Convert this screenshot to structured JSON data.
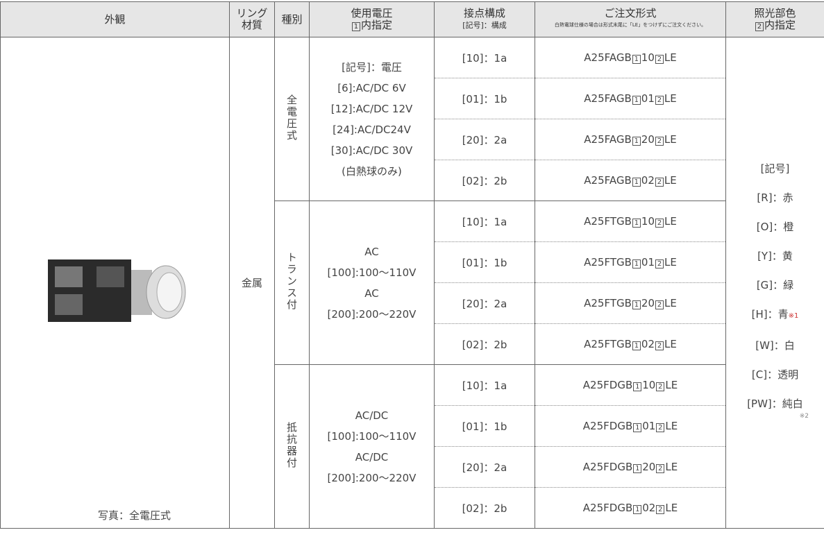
{
  "header": {
    "appearance": "外観",
    "ring_material": [
      "リング",
      "材質"
    ],
    "kind": "種別",
    "voltage": {
      "title": "使用電圧",
      "box": "1",
      "note": "内指定"
    },
    "contacts": {
      "title": "接点構成",
      "note": "[記号]：構成"
    },
    "order": {
      "title": "ご注文形式",
      "note": "白熱電球仕様の場合は形式末尾に「LE」をつけずにご注文ください。"
    },
    "color": {
      "title": "照光部色",
      "box": "2",
      "note": "内指定"
    }
  },
  "photo_caption": "写真：全電圧式",
  "ring_material": "金属",
  "groups": [
    {
      "kind": "全電圧式",
      "voltage": [
        "[記号]：電圧",
        "[6]:AC/DC 6V",
        "[12]:AC/DC 12V",
        "[24]:AC/DC24V",
        "[30]:AC/DC 30V",
        "(白熱球のみ)"
      ],
      "rows": [
        {
          "contact": "[10]：1a",
          "order": [
            "A25FAGB",
            "1",
            "10",
            "2",
            "LE"
          ]
        },
        {
          "contact": "[01]：1b",
          "order": [
            "A25FAGB",
            "1",
            "01",
            "2",
            "LE"
          ]
        },
        {
          "contact": "[20]：2a",
          "order": [
            "A25FAGB",
            "1",
            "20",
            "2",
            "LE"
          ]
        },
        {
          "contact": "[02]：2b",
          "order": [
            "A25FAGB",
            "1",
            "02",
            "2",
            "LE"
          ]
        }
      ]
    },
    {
      "kind": "トランス付",
      "voltage": [
        "AC",
        "[100]:100～110V",
        "AC",
        "[200]:200～220V"
      ],
      "rows": [
        {
          "contact": "[10]：1a",
          "order": [
            "A25FTGB",
            "1",
            "10",
            "2",
            "LE"
          ]
        },
        {
          "contact": "[01]：1b",
          "order": [
            "A25FTGB",
            "1",
            "01",
            "2",
            "LE"
          ]
        },
        {
          "contact": "[20]：2a",
          "order": [
            "A25FTGB",
            "1",
            "20",
            "2",
            "LE"
          ]
        },
        {
          "contact": "[02]：2b",
          "order": [
            "A25FTGB",
            "1",
            "02",
            "2",
            "LE"
          ]
        }
      ]
    },
    {
      "kind": "抵抗器付",
      "voltage": [
        "AC/DC",
        "[100]:100～110V",
        "AC/DC",
        "[200]:200～220V"
      ],
      "rows": [
        {
          "contact": "[10]：1a",
          "order": [
            "A25FDGB",
            "1",
            "10",
            "2",
            "LE"
          ]
        },
        {
          "contact": "[01]：1b",
          "order": [
            "A25FDGB",
            "1",
            "01",
            "2",
            "LE"
          ]
        },
        {
          "contact": "[20]：2a",
          "order": [
            "A25FDGB",
            "1",
            "20",
            "2",
            "LE"
          ]
        },
        {
          "contact": "[02]：2b",
          "order": [
            "A25FDGB",
            "1",
            "02",
            "2",
            "LE"
          ]
        }
      ]
    }
  ],
  "colors": {
    "heading": "[記号]",
    "items": [
      {
        "label": "[R]：赤"
      },
      {
        "label": "[O]：橙"
      },
      {
        "label": "[Y]：黄"
      },
      {
        "label": "[G]：緑"
      },
      {
        "label": "[H]：青",
        "note": "※1"
      },
      {
        "label": "[W]：白"
      },
      {
        "label": "[C]：透明"
      },
      {
        "label": "[PW]：純白",
        "note": "※2"
      }
    ]
  }
}
